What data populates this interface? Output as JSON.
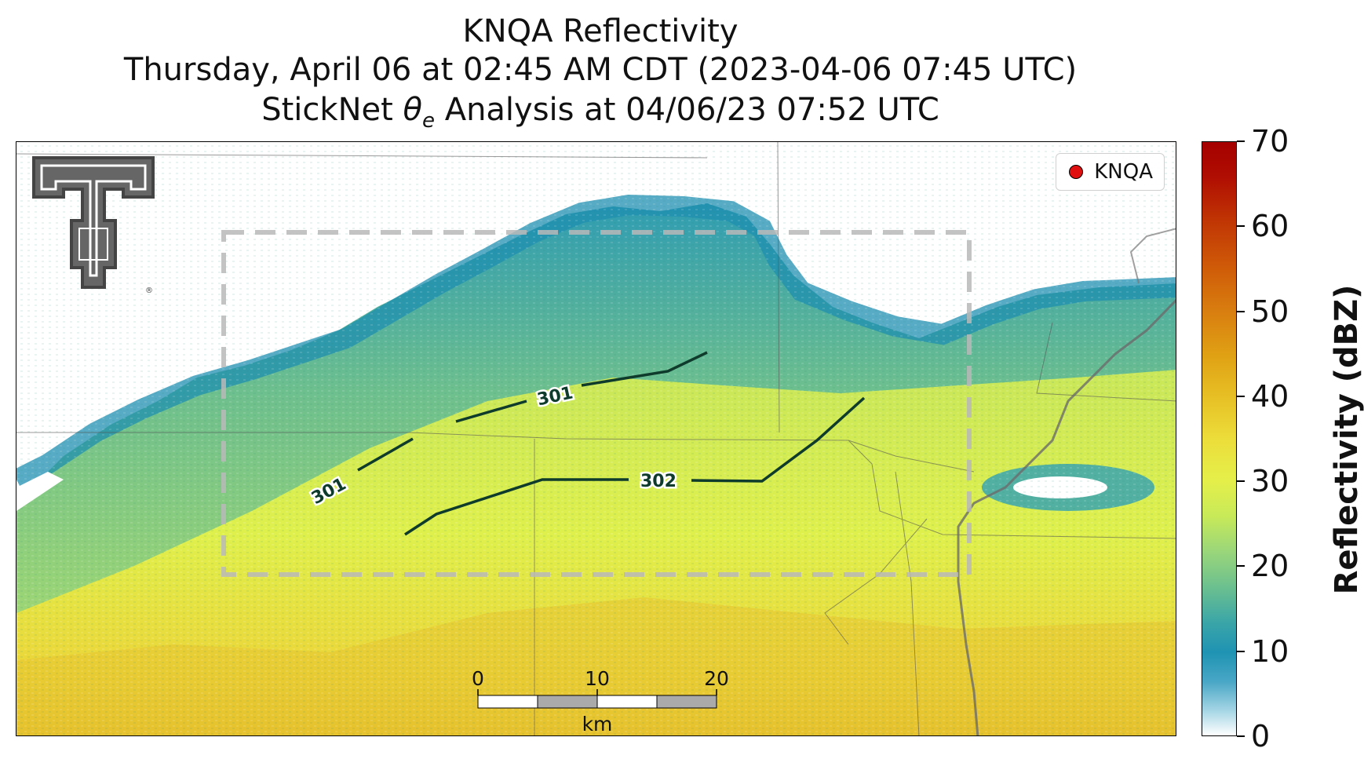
{
  "title": {
    "line1": "KNQA Reflectivity",
    "line2": "Thursday, April 06 at 02:45 AM CDT (2023-04-06 07:45 UTC)",
    "line3_prefix": "StickNet ",
    "line3_symbol": "θ",
    "line3_subscript": "e",
    "line3_suffix": " Analysis at 04/06/23 07:52 UTC"
  },
  "legend": {
    "label": "KNQA",
    "marker_color": "#e01010"
  },
  "contours": [
    {
      "label": "301",
      "value": 301
    },
    {
      "label": "301",
      "value": 301
    },
    {
      "label": "302",
      "value": 302
    }
  ],
  "scale_bar": {
    "ticks": [
      "0",
      "10",
      "20"
    ],
    "unit": "km"
  },
  "colorbar": {
    "label": "Reflectivity (dBZ)",
    "min": 0,
    "max": 70,
    "ticks": [
      "0",
      "10",
      "20",
      "30",
      "40",
      "50",
      "60",
      "70"
    ]
  },
  "logo": {
    "text": "Texas Tech Double T",
    "registered_mark": "®"
  },
  "colors": {
    "contour": "#0e3b2b",
    "analysis_box": "#b8b8b8",
    "river": "#6b6b6b"
  }
}
